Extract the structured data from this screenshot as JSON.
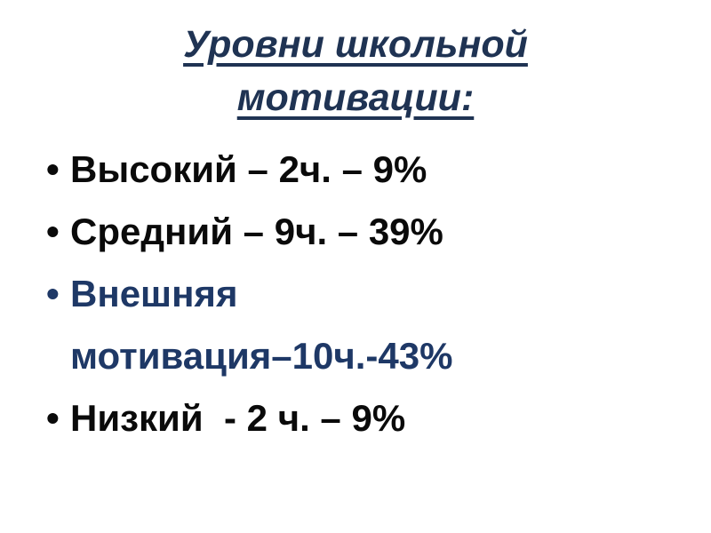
{
  "slide": {
    "background": "#FFFFFF",
    "title": {
      "lines": [
        "Уровни школьной",
        "мотивации:"
      ],
      "color": "#1F3353"
    },
    "bullets": {
      "marker": "•",
      "items": [
        {
          "lines": [
            "Высокий – 2ч. – 9%"
          ],
          "color": "#0A0A0A"
        },
        {
          "lines": [
            "Средний – 9ч. – 39%"
          ],
          "color": "#0A0A0A"
        },
        {
          "lines": [
            "Внешняя",
            "мотивация–10ч.-43%"
          ],
          "color": "#1E3866"
        },
        {
          "lines": [
            "Низкий  - 2 ч. – 9%"
          ],
          "color": "#0A0A0A"
        }
      ]
    }
  }
}
